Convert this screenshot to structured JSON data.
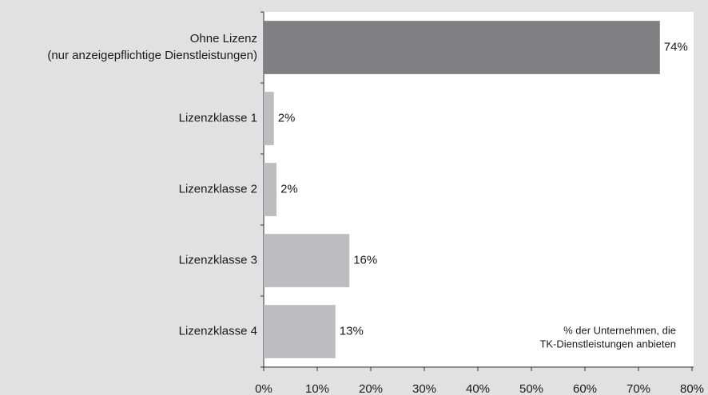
{
  "chart_data": {
    "type": "bar",
    "orientation": "horizontal",
    "categories": [
      [
        "Ohne Lizenz",
        "(nur anzeigepflichtige Dienstleistungen)"
      ],
      [
        "Lizenzklasse 1"
      ],
      [
        "Lizenzklasse 2"
      ],
      [
        "Lizenzklasse 3"
      ],
      [
        "Lizenzklasse 4"
      ]
    ],
    "values": [
      74,
      1.9,
      2.4,
      16,
      13.4
    ],
    "value_labels": [
      "74%",
      "2%",
      "2%",
      "16%",
      "13%"
    ],
    "colors": [
      "#808083",
      "#bdbdbf",
      "#bdbdbf",
      "#bdbdbf",
      "#bdbdbf"
    ],
    "xlim": [
      0,
      80
    ],
    "xticks": [
      {
        "value": 0,
        "label": "0%"
      },
      {
        "value": 10,
        "label": "10%"
      },
      {
        "value": 20,
        "label": "20%"
      },
      {
        "value": 30,
        "label": "30%"
      },
      {
        "value": 40,
        "label": "40%"
      },
      {
        "value": 50,
        "label": "50%"
      },
      {
        "value": 60,
        "label": "60%"
      },
      {
        "value": 70,
        "label": "70%"
      },
      {
        "value": 80,
        "label": "80%"
      }
    ],
    "annotation": [
      "% der Unternehmen, die",
      "TK-Dienstleistungen anbieten"
    ]
  }
}
